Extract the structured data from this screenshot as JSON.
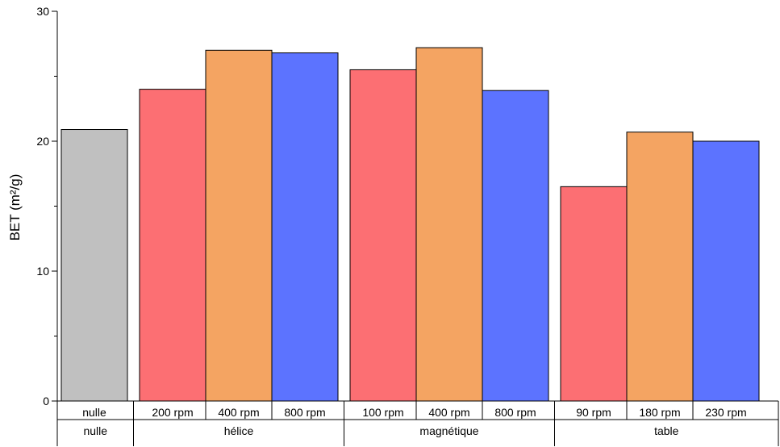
{
  "chart_data": {
    "type": "bar",
    "title": "",
    "xlabel": "",
    "ylabel": "BET (m²/g)",
    "ylim": [
      0,
      30
    ],
    "yticks": [
      0,
      10,
      20,
      30
    ],
    "grid": false,
    "groups": [
      {
        "label": "nulle",
        "bars": [
          {
            "label": "nulle",
            "value": 20.9,
            "color": "#c0c0c0"
          }
        ]
      },
      {
        "label": "hélice",
        "bars": [
          {
            "label": "200 rpm",
            "value": 24.0,
            "color": "#fc6f73"
          },
          {
            "label": "400 rpm",
            "value": 27.0,
            "color": "#f4a462"
          },
          {
            "label": "800 rpm",
            "value": 26.8,
            "color": "#5c73ff"
          }
        ]
      },
      {
        "label": "magnétique",
        "bars": [
          {
            "label": "100 rpm",
            "value": 25.5,
            "color": "#fc6f73"
          },
          {
            "label": "400 rpm",
            "value": 27.2,
            "color": "#f4a462"
          },
          {
            "label": "800 rpm",
            "value": 23.9,
            "color": "#5c73ff"
          }
        ]
      },
      {
        "label": "table",
        "bars": [
          {
            "label": "90 rpm",
            "value": 16.5,
            "color": "#fc6f73"
          },
          {
            "label": "180 rpm",
            "value": 20.7,
            "color": "#f4a462"
          },
          {
            "label": "230 rpm",
            "value": 20.0,
            "color": "#5c73ff"
          }
        ]
      }
    ]
  }
}
